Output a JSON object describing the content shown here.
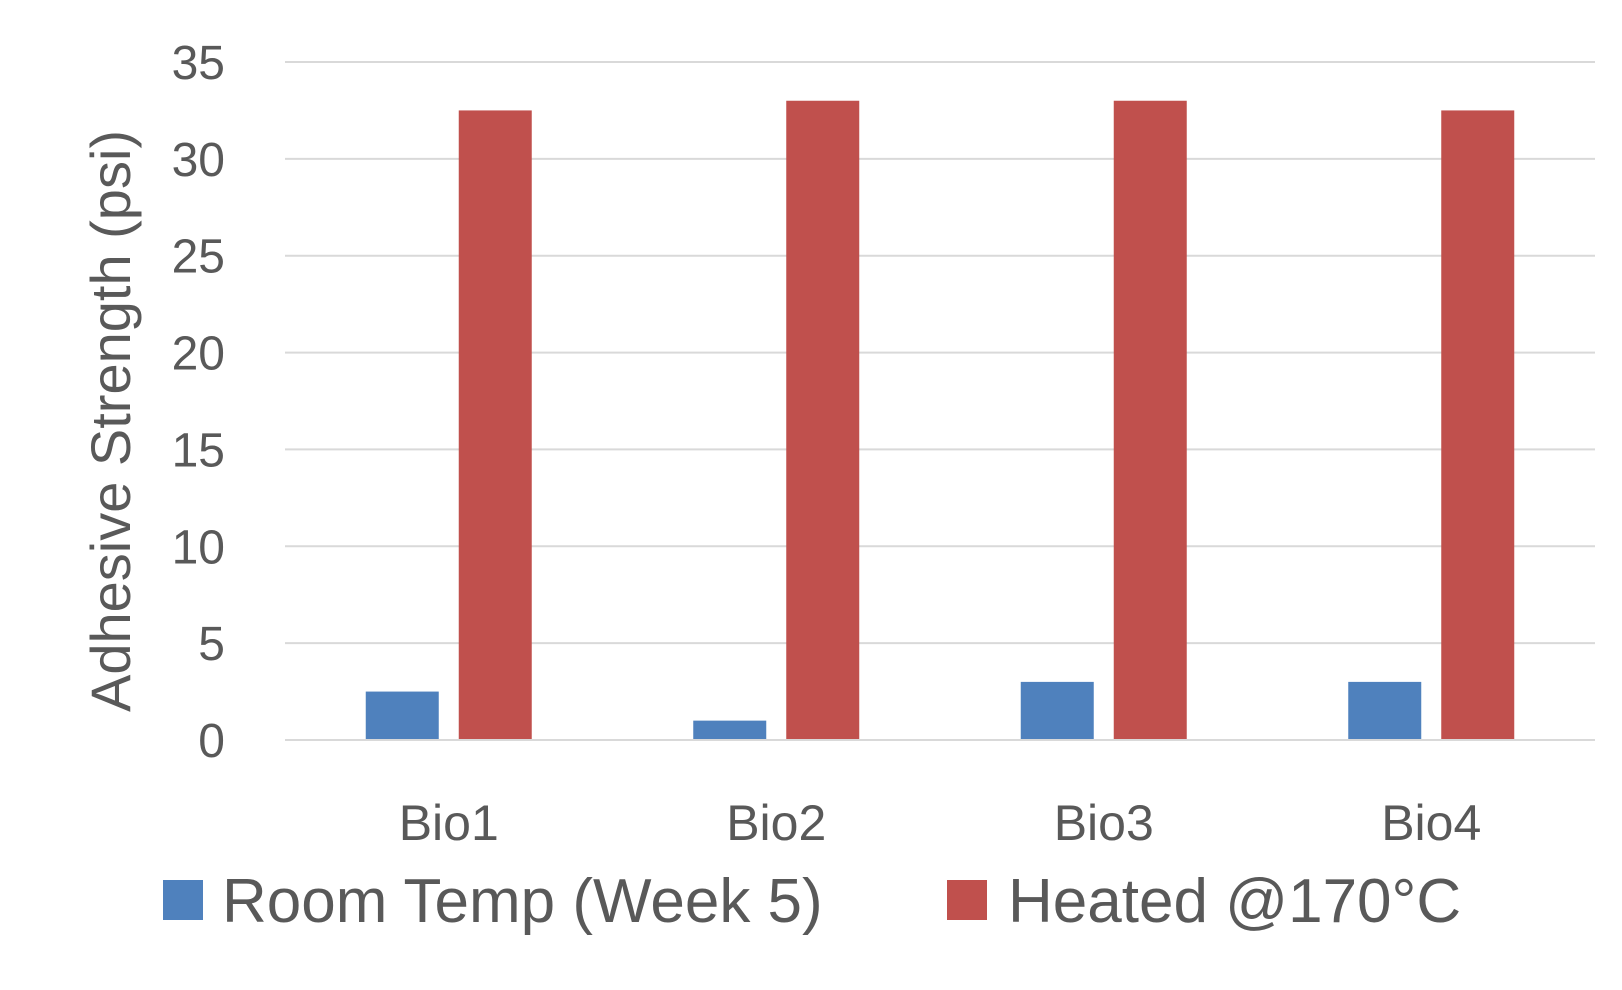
{
  "chart_data": {
    "type": "bar",
    "title": "",
    "xlabel": "",
    "ylabel": "Adhesive Strength (psi)",
    "ylim": [
      0,
      35
    ],
    "yticks": [
      0,
      5,
      10,
      15,
      20,
      25,
      30,
      35
    ],
    "grid": true,
    "legend_position": "bottom",
    "categories": [
      "Bio1",
      "Bio2",
      "Bio3",
      "Bio4"
    ],
    "series": [
      {
        "name": "Room Temp (Week 5)",
        "color": "#4f81bd",
        "values": [
          2.5,
          1.0,
          3.0,
          3.0
        ]
      },
      {
        "name": "Heated @170°C",
        "color": "#c0504d",
        "values": [
          32.5,
          33.0,
          33.0,
          32.5
        ]
      }
    ]
  }
}
